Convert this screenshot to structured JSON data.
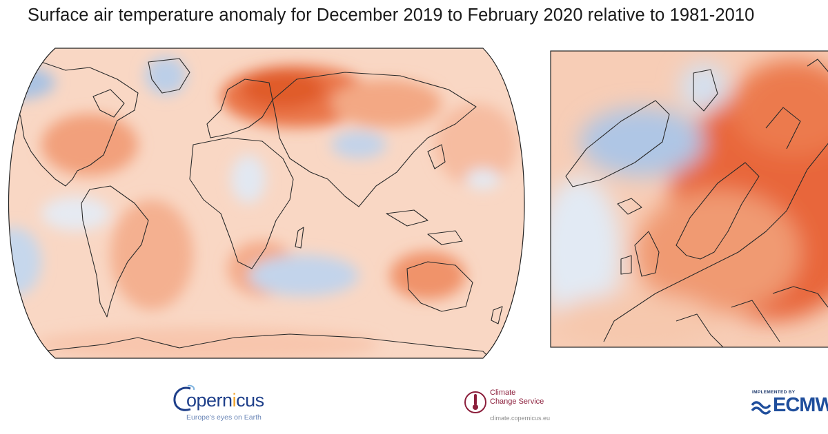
{
  "title": "Surface air temperature anomaly for December 2019 to February 2020 relative to 1981-2010",
  "maps": {
    "world_label": "world-map",
    "europe_label": "europe-map",
    "colors": {
      "warm_strong": "#e25d2c",
      "warm_mid": "#f19a73",
      "warm_light": "#f9cdb4",
      "neutral": "#fbeee4",
      "cool_light": "#dbe6f3",
      "cool_mid": "#b7cbe6",
      "coastline": "#2a2a2a"
    }
  },
  "logos": {
    "copernicus": {
      "name_prefix": "opern",
      "name_highlight": "i",
      "name_suffix": "cus",
      "tagline": "Europe's eyes on Earth",
      "icon": "copernicus-swoosh-icon"
    },
    "c3s": {
      "line1": "Climate",
      "line2": "Change Service",
      "url": "climate.copernicus.eu",
      "icon": "thermometer-icon"
    },
    "ecmwf": {
      "small": "IMPLEMENTED BY",
      "name": "ECMWF",
      "icon": "ecmwf-wave-icon"
    }
  }
}
